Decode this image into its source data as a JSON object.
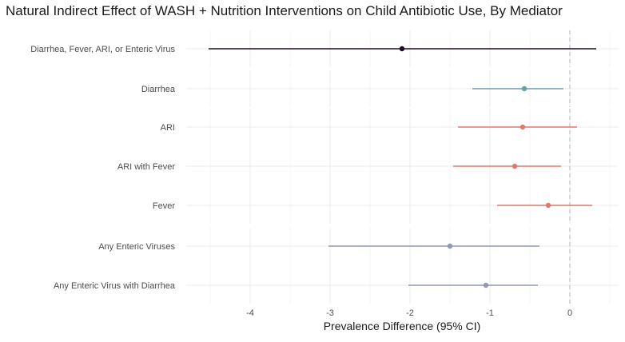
{
  "chart_data": {
    "type": "forest",
    "title": "Natural Indirect Effect of WASH + Nutrition Interventions on Child Antibiotic Use, By Mediator",
    "xlabel": "Prevalence Difference (95% CI)",
    "ylabel": "",
    "xlim": [
      -4.8,
      0.6
    ],
    "xticks": [
      -4,
      -3,
      -2,
      -1,
      0
    ],
    "xtick_labels": [
      "-4",
      "-3",
      "-2",
      "-1",
      "0"
    ],
    "reference_line": 0,
    "grid": true,
    "panels": [
      {
        "color": "#1c0a20",
        "rows": [
          {
            "label": "Diarrhea, Fever, ARI, or Enteric Virus",
            "estimate": -2.1,
            "lower": -4.52,
            "upper": 0.33
          }
        ]
      },
      {
        "color": "#6a9ea8",
        "rows": [
          {
            "label": "Diarrhea",
            "estimate": -0.57,
            "lower": -1.22,
            "upper": -0.08
          }
        ]
      },
      {
        "color": "#dd7a6e",
        "rows": [
          {
            "label": "ARI",
            "estimate": -0.59,
            "lower": -1.4,
            "upper": 0.09
          },
          {
            "label": "ARI with Fever",
            "estimate": -0.69,
            "lower": -1.46,
            "upper": -0.11
          },
          {
            "label": "Fever",
            "estimate": -0.27,
            "lower": -0.91,
            "upper": 0.28
          }
        ]
      },
      {
        "color": "#8f99b1",
        "rows": [
          {
            "label": "Any Enteric Viruses",
            "estimate": -1.5,
            "lower": -3.02,
            "upper": -0.38
          },
          {
            "label": "Any Enteric Virus with Diarrhea",
            "estimate": -1.05,
            "lower": -2.02,
            "upper": -0.4
          }
        ]
      }
    ]
  }
}
